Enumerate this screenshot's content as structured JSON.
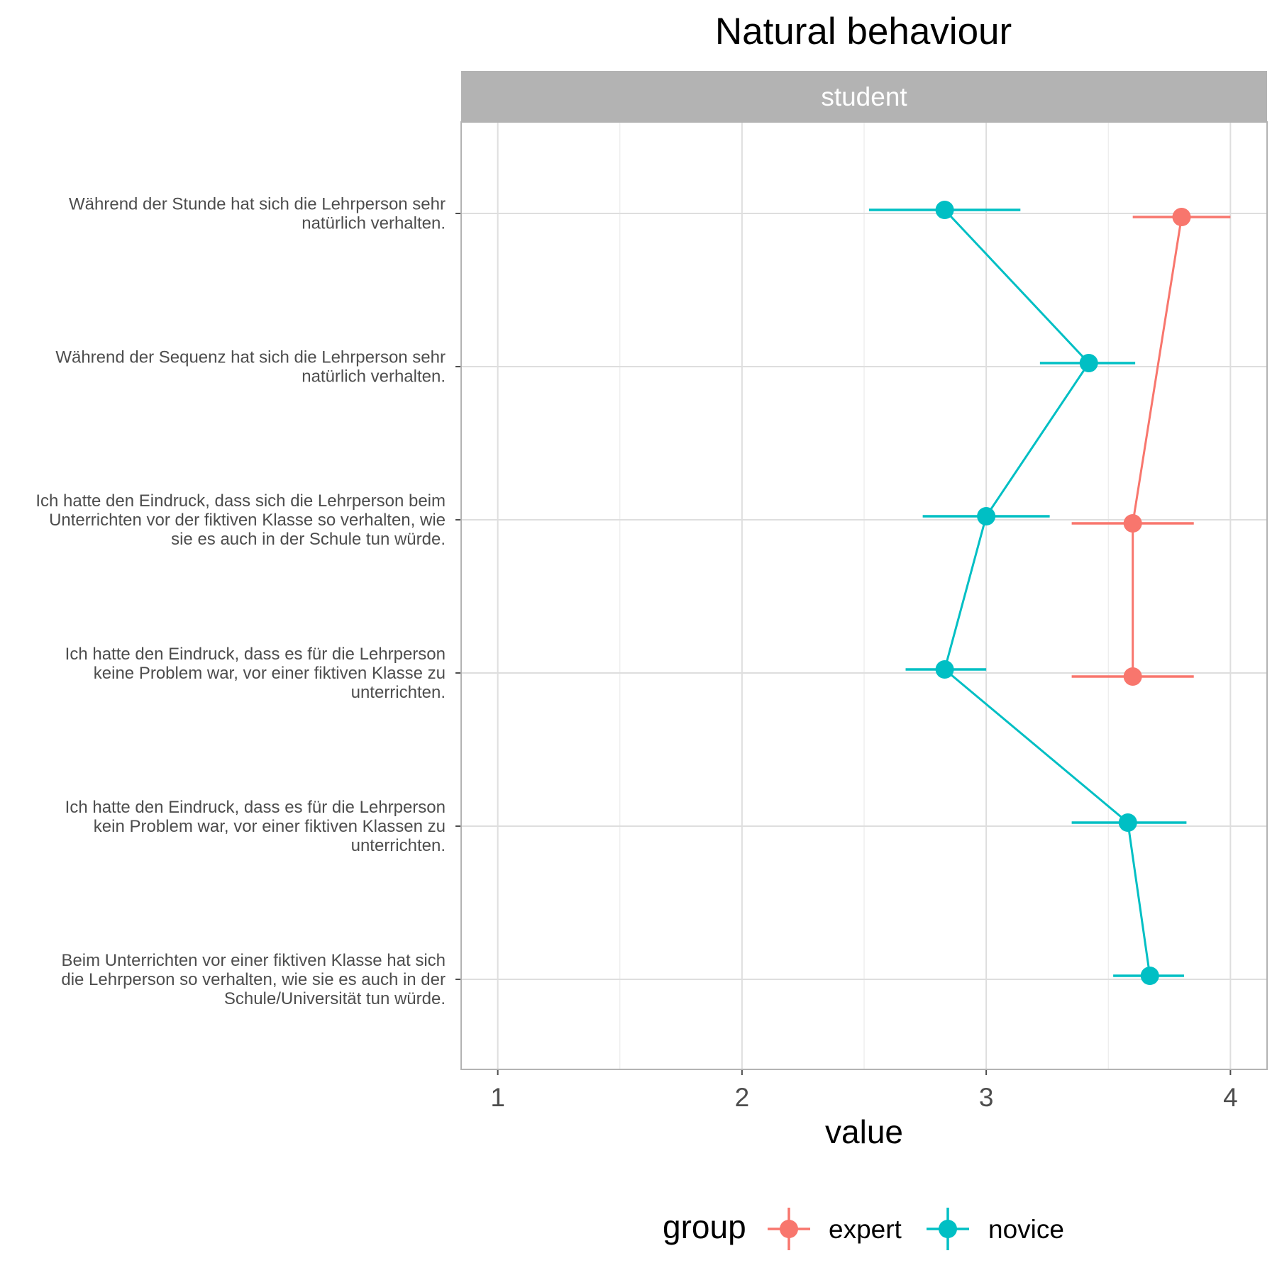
{
  "chart_data": {
    "type": "scatter",
    "title": "Natural behaviour",
    "facet": "student",
    "xlabel": "value",
    "ylabel": "",
    "xlim": [
      0.85,
      4.15
    ],
    "xticks": [
      1,
      2,
      3,
      4
    ],
    "grid": true,
    "legend": {
      "title": "group",
      "position": "bottom"
    },
    "categories": [
      [
        "Während der Stunde hat sich die Lehrperson sehr",
        "natürlich verhalten."
      ],
      [
        "Während der Sequenz hat sich die Lehrperson sehr",
        "natürlich verhalten."
      ],
      [
        "Ich hatte den Eindruck, dass sich die Lehrperson beim",
        "Unterrichten vor der fiktiven Klasse so verhalten, wie",
        "sie es auch in der Schule tun würde."
      ],
      [
        "Ich hatte den Eindruck, dass es für die Lehrperson",
        "keine Problem war, vor einer fiktiven Klasse zu",
        "unterrichten."
      ],
      [
        "Ich hatte den Eindruck, dass es für die Lehrperson",
        "kein Problem war, vor einer fiktiven Klassen zu",
        "unterrichten."
      ],
      [
        "Beim Unterrichten vor einer fiktiven Klasse hat sich",
        "die Lehrperson so verhalten, wie sie es auch in der",
        "Schule/Universität tun würde."
      ]
    ],
    "series": [
      {
        "name": "expert",
        "color": "#F8766D",
        "points": [
          {
            "category_index": 0,
            "value": 3.8,
            "lower": 3.6,
            "upper": 4.0
          },
          {
            "category_index": 2,
            "value": 3.6,
            "lower": 3.35,
            "upper": 3.85
          },
          {
            "category_index": 3,
            "value": 3.6,
            "lower": 3.35,
            "upper": 3.85
          }
        ]
      },
      {
        "name": "novice",
        "color": "#00BFC4",
        "points": [
          {
            "category_index": 0,
            "value": 2.83,
            "lower": 2.52,
            "upper": 3.14
          },
          {
            "category_index": 1,
            "value": 3.42,
            "lower": 3.22,
            "upper": 3.61
          },
          {
            "category_index": 2,
            "value": 3.0,
            "lower": 2.74,
            "upper": 3.26
          },
          {
            "category_index": 3,
            "value": 2.83,
            "lower": 2.67,
            "upper": 3.0
          },
          {
            "category_index": 4,
            "value": 3.58,
            "lower": 3.35,
            "upper": 3.82
          },
          {
            "category_index": 5,
            "value": 3.67,
            "lower": 3.52,
            "upper": 3.81
          }
        ]
      }
    ]
  }
}
